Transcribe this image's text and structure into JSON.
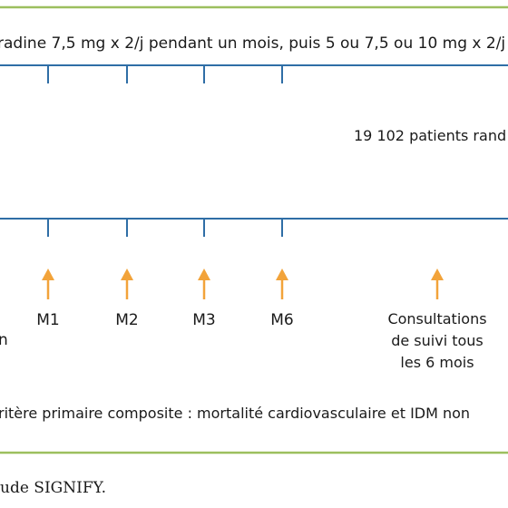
{
  "diagram": {
    "colors": {
      "border": "#9cbf5e",
      "timeline": "#2f6ea6",
      "arrow": "#f2a33a",
      "text": "#1a1a1a"
    },
    "treatment_text": "radine 7,5 mg x 2/j pendant un mois, puis 5 ou 7,5 ou 10 mg x 2/j",
    "patients_text": "19 102 patients rand",
    "milestones": [
      "M1",
      "M2",
      "M3",
      "M6"
    ],
    "left_fragment": "n",
    "followup_lines": [
      "Consultations",
      "de suivi tous",
      "les 6 mois"
    ],
    "endpoint_text": "ritère primaire composite : mortalité cardiovasculaire et IDM non",
    "caption": "ude SIGNIFY."
  }
}
